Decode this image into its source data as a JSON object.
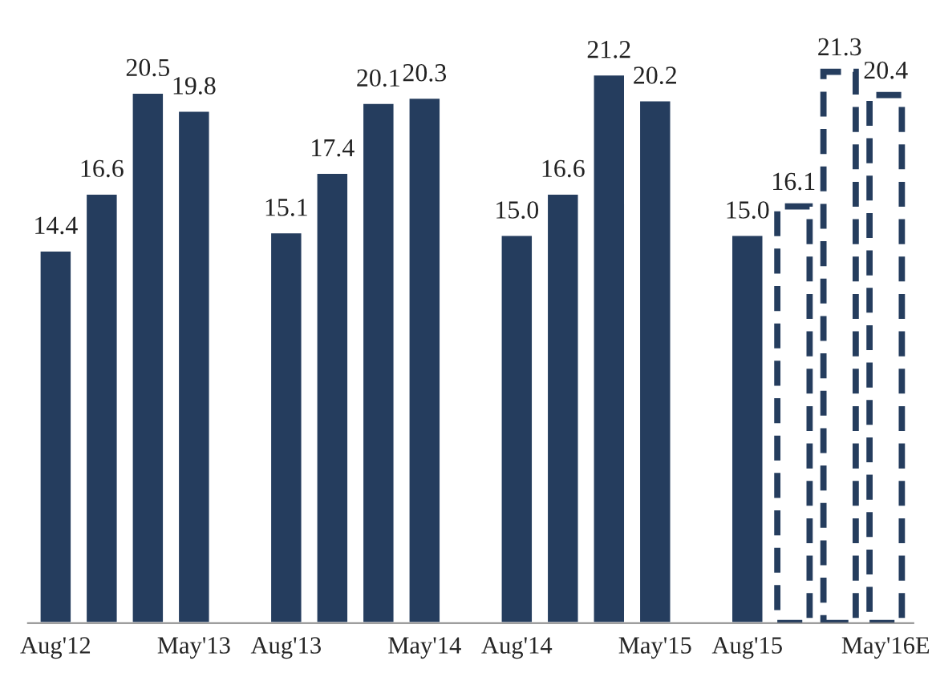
{
  "chart_data": {
    "type": "bar",
    "categories": [
      "Aug'12",
      null,
      null,
      "May'13",
      null,
      "Aug'13",
      null,
      null,
      "May'14",
      null,
      "Aug'14",
      null,
      null,
      "May'15",
      null,
      "Aug'15",
      null,
      null,
      "May'16E"
    ],
    "series": [
      {
        "color": "#253d5e",
        "values": [
          14.4,
          16.6,
          20.5,
          19.8,
          null,
          15.1,
          17.4,
          20.1,
          20.3,
          null,
          15.0,
          16.6,
          21.2,
          20.2,
          null,
          15.0,
          null,
          null,
          null
        ],
        "value_labels": [
          "14.4",
          "16.6",
          "20.5",
          "19.8",
          null,
          "15.1",
          "17.4",
          "20.1",
          "20.3",
          null,
          "15.0",
          "16.6",
          "21.2",
          "20.2",
          null,
          "15.0",
          null,
          null,
          null
        ]
      },
      {
        "color": "#253d5e",
        "line_style": "dashed",
        "values": [
          null,
          null,
          null,
          null,
          null,
          null,
          null,
          null,
          null,
          null,
          null,
          null,
          null,
          null,
          null,
          null,
          16.1,
          21.3,
          20.4
        ],
        "value_labels": [
          null,
          null,
          null,
          null,
          null,
          null,
          null,
          null,
          null,
          null,
          null,
          null,
          null,
          null,
          null,
          null,
          "16.1",
          "21.3",
          "20.4"
        ]
      }
    ],
    "tick_labels": "x",
    "grid": false,
    "legend": false
  }
}
